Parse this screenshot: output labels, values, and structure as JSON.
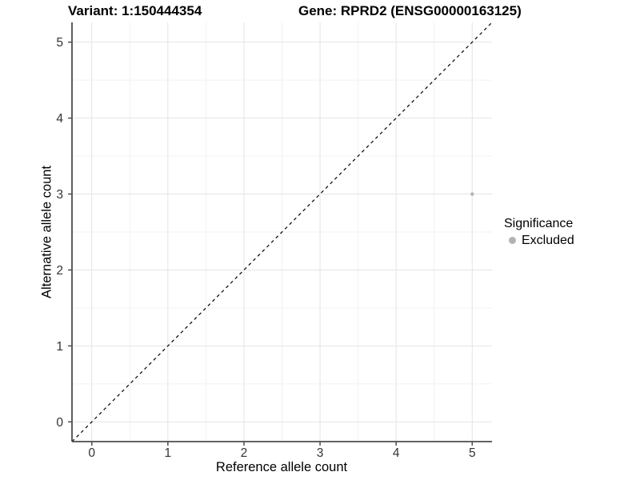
{
  "chart_data": {
    "type": "scatter",
    "titles": {
      "left": "Variant: 1:150444354",
      "right": "Gene: RPRD2 (ENSG00000163125)"
    },
    "xlabel": "Reference allele count",
    "ylabel": "Alternative allele count",
    "xlim": [
      -0.26,
      5.26
    ],
    "ylim": [
      -0.26,
      5.26
    ],
    "x_ticks": [
      0,
      1,
      2,
      3,
      4,
      5
    ],
    "y_ticks": [
      0,
      1,
      2,
      3,
      4,
      5
    ],
    "minor_grid_step": 0.5,
    "grid": {
      "major": true,
      "minor": true,
      "major_color": "#e4e4e4",
      "minor_color": "#f0f0f0"
    },
    "reference_line": {
      "type": "identity",
      "dashed": true,
      "color": "#000000"
    },
    "axis_color": "#4d4d4d",
    "tick_label_color": "#333333",
    "background": "#ffffff",
    "series": [
      {
        "name": "Excluded",
        "color": "#b3b3b3",
        "points": [
          {
            "x": 5,
            "y": 3
          }
        ]
      }
    ],
    "legend": {
      "title": "Significance",
      "position": "right"
    }
  }
}
